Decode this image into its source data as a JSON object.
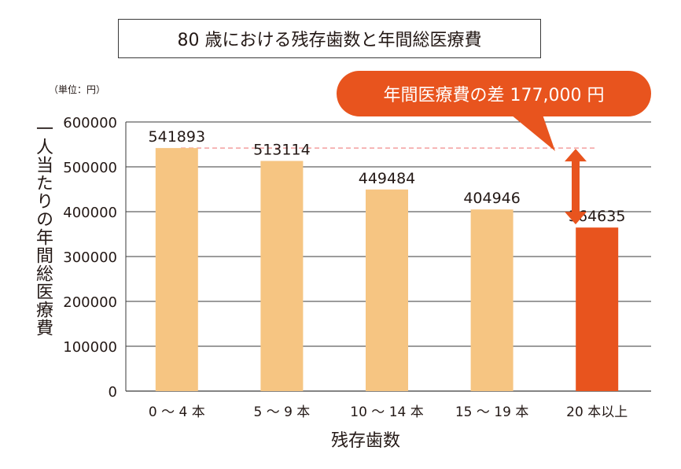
{
  "title": "80 歳における残存歯数と年間総医療費",
  "unit_label": "（単位：円）",
  "callout_label": "年間医療費の差 177,000 円",
  "colors": {
    "bar_light": "#f6c582",
    "bar_highlight": "#e8541e",
    "grid": "#3a3a3a",
    "reference_line": "#f08c8c",
    "arrow": "#e8541e"
  },
  "chart_data": {
    "type": "bar",
    "title": "80 歳における残存歯数と年間総医療費",
    "categories": [
      "0 〜 4 本",
      "5 〜 9 本",
      "10 〜 14 本",
      "15 〜 19 本",
      "20 本以上"
    ],
    "values": [
      541893,
      513114,
      449484,
      404946,
      364635
    ],
    "value_labels": [
      "541893",
      "513114",
      "449484",
      "404946",
      "364635"
    ],
    "highlight_index": 4,
    "xlabel": "残存歯数",
    "ylabel": "一人当たりの年間総医療費",
    "ylim": [
      0,
      600000
    ],
    "yticks": [
      0,
      100000,
      200000,
      300000,
      400000,
      500000,
      600000
    ],
    "ytick_labels": [
      "0",
      "100000",
      "200000",
      "300000",
      "400000",
      "500000",
      "600000"
    ],
    "grid": true,
    "reference_value": 541893,
    "difference_arrow": {
      "from": 541893,
      "to": 364635
    }
  }
}
